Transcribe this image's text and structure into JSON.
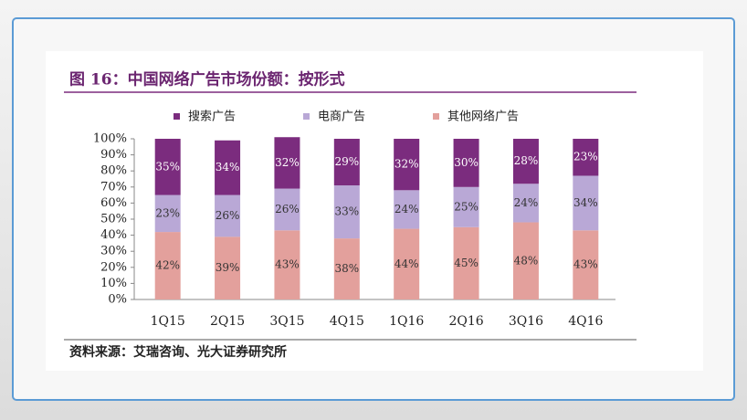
{
  "chart_data": {
    "type": "stacked_bar",
    "title": "图 16：中国网络广告市场份额：按形式",
    "source": "资料来源：艾瑞咨询、光大证券研究所",
    "categories": [
      "1Q15",
      "2Q15",
      "3Q15",
      "4Q15",
      "1Q16",
      "2Q16",
      "3Q16",
      "4Q16"
    ],
    "series": [
      {
        "name": "搜索广告",
        "color": "#7b2c7e",
        "values": [
          35,
          34,
          32,
          29,
          32,
          30,
          28,
          23
        ],
        "value_labels": [
          "35%",
          "34%",
          "32%",
          "29%",
          "32%",
          "30%",
          "28%",
          "23%"
        ]
      },
      {
        "name": "电商广告",
        "color": "#b9a8d6",
        "values": [
          23,
          26,
          26,
          33,
          24,
          25,
          24,
          34
        ],
        "value_labels": [
          "23%",
          "26%",
          "26%",
          "33%",
          "24%",
          "25%",
          "24%",
          "34%"
        ]
      },
      {
        "name": "其他网络广告",
        "color": "#e3a09c",
        "values": [
          42,
          39,
          43,
          38,
          44,
          45,
          48,
          43
        ],
        "value_labels": [
          "42%",
          "39%",
          "43%",
          "38%",
          "44%",
          "45%",
          "48%",
          "43%"
        ]
      }
    ],
    "ylim": [
      0,
      100
    ],
    "yticks": [
      {
        "value": 0,
        "label": "0%"
      },
      {
        "value": 10,
        "label": "10%"
      },
      {
        "value": 20,
        "label": "20%"
      },
      {
        "value": 30,
        "label": "30%"
      },
      {
        "value": 40,
        "label": "40%"
      },
      {
        "value": 50,
        "label": "50%"
      },
      {
        "value": 60,
        "label": "60%"
      },
      {
        "value": 70,
        "label": "70%"
      },
      {
        "value": 80,
        "label": "80%"
      },
      {
        "value": 90,
        "label": "90%"
      },
      {
        "value": 100,
        "label": "100%"
      }
    ]
  }
}
